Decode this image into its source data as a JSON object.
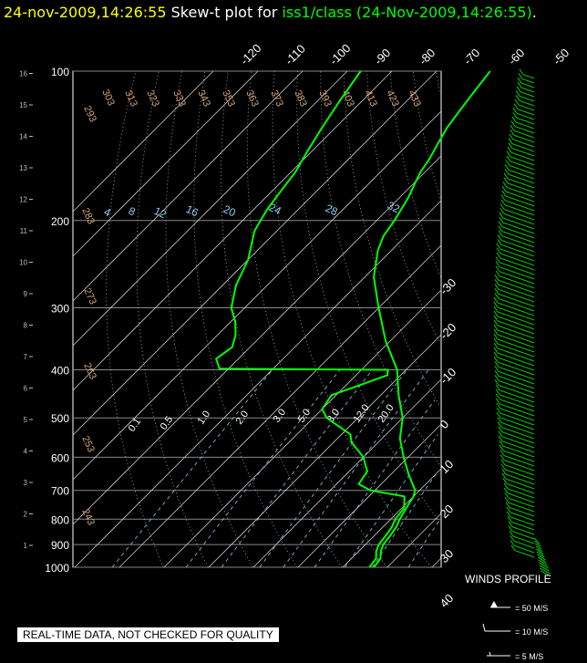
{
  "title": {
    "date_time": "24-nov-2009,14:26:55",
    "label": "Skew-t plot for",
    "source": "iss1/class (24-Nov-2009,14:26:55)",
    "end": "."
  },
  "quality_banner": "REAL-TIME DATA, NOT CHECKED FOR QUALITY",
  "wind_profile": {
    "title": "WINDS PROFILE",
    "legend": [
      "= 50 M/S",
      "= 10 M/S",
      "= 5 M/S"
    ]
  },
  "colors": {
    "background": "#000000",
    "profile": "#00ff00",
    "grid": "#ffffff",
    "isotherm_labels": "#ffffff",
    "dry_adiabat_labels": "#d2a679",
    "mixing_ratio_labels": "#87ceeb",
    "moist_adiabat_labels": "#ffffff"
  },
  "chart_data": {
    "type": "line",
    "pressure_levels": [
      100,
      200,
      300,
      400,
      500,
      600,
      700,
      800,
      900,
      1000
    ],
    "height_km_ticks": [
      1,
      2,
      3,
      4,
      5,
      6,
      7,
      8,
      9,
      10,
      11,
      12,
      13,
      14,
      15,
      16
    ],
    "isotherms_top": [
      "-120",
      "-110",
      "-100",
      "-90",
      "-80",
      "-70",
      "-60",
      "-50",
      "-40"
    ],
    "isotherms_right": [
      "-30",
      "-20",
      "-10",
      "0",
      "10",
      "20",
      "30",
      "40"
    ],
    "dry_adiabats": [
      "293",
      "303",
      "313",
      "323",
      "333",
      "343",
      "353",
      "363",
      "373",
      "383",
      "393",
      "403",
      "413",
      "423",
      "433",
      "283",
      "273",
      "263",
      "253",
      "243"
    ],
    "mixing_ratio_top": [
      "4",
      "8",
      "12",
      "16",
      "20",
      "24",
      "28",
      "32"
    ],
    "mixing_ratio_mid": [
      "0.1",
      "0.5",
      "1.0",
      "2.0",
      "3.0",
      "5.0",
      "8.0",
      "12.0",
      "20.0"
    ],
    "series": [
      {
        "key": "temperature",
        "points": [
          {
            "p": 1000,
            "t": 17.0
          },
          {
            "p": 960,
            "t": 16.5
          },
          {
            "p": 930,
            "t": 15.0
          },
          {
            "p": 900,
            "t": 14.0
          },
          {
            "p": 860,
            "t": 13.5
          },
          {
            "p": 830,
            "t": 13.0
          },
          {
            "p": 800,
            "t": 12.0
          },
          {
            "p": 760,
            "t": 11.0
          },
          {
            "p": 720,
            "t": 10.0
          },
          {
            "p": 700,
            "t": 9.0
          },
          {
            "p": 650,
            "t": 4.0
          },
          {
            "p": 600,
            "t": -1.0
          },
          {
            "p": 550,
            "t": -6.0
          },
          {
            "p": 500,
            "t": -10.0
          },
          {
            "p": 450,
            "t": -16.0
          },
          {
            "p": 400,
            "t": -22.0
          },
          {
            "p": 350,
            "t": -31.0
          },
          {
            "p": 300,
            "t": -40.0
          },
          {
            "p": 260,
            "t": -48.0
          },
          {
            "p": 230,
            "t": -53.0
          },
          {
            "p": 215,
            "t": -55.0
          },
          {
            "p": 200,
            "t": -56.0
          },
          {
            "p": 190,
            "t": -57.0
          },
          {
            "p": 180,
            "t": -58.0
          },
          {
            "p": 170,
            "t": -59.5
          },
          {
            "p": 160,
            "t": -61.0
          },
          {
            "p": 150,
            "t": -62.0
          },
          {
            "p": 140,
            "t": -63.5
          },
          {
            "p": 130,
            "t": -65.0
          },
          {
            "p": 120,
            "t": -66.0
          },
          {
            "p": 110,
            "t": -67.0
          },
          {
            "p": 100,
            "t": -68.0
          }
        ]
      },
      {
        "key": "dewpoint",
        "points": [
          {
            "p": 1000,
            "t": 16.0
          },
          {
            "p": 960,
            "t": 15.5
          },
          {
            "p": 930,
            "t": 14.0
          },
          {
            "p": 900,
            "t": 13.0
          },
          {
            "p": 860,
            "t": 12.5
          },
          {
            "p": 830,
            "t": 12.0
          },
          {
            "p": 800,
            "t": 11.0
          },
          {
            "p": 760,
            "t": 10.5
          },
          {
            "p": 720,
            "t": 8.0
          },
          {
            "p": 700,
            "t": -1.0
          },
          {
            "p": 680,
            "t": -5.0
          },
          {
            "p": 640,
            "t": -6.0
          },
          {
            "p": 620,
            "t": -8.0
          },
          {
            "p": 600,
            "t": -10.0
          },
          {
            "p": 560,
            "t": -16.0
          },
          {
            "p": 540,
            "t": -18.0
          },
          {
            "p": 500,
            "t": -27.0
          },
          {
            "p": 480,
            "t": -30.0
          },
          {
            "p": 450,
            "t": -31.0
          },
          {
            "p": 430,
            "t": -27.0
          },
          {
            "p": 410,
            "t": -23.0
          },
          {
            "p": 400,
            "t": -24.0
          },
          {
            "p": 398,
            "t": -62.0
          },
          {
            "p": 380,
            "t": -65.0
          },
          {
            "p": 360,
            "t": -64.0
          },
          {
            "p": 340,
            "t": -66.0
          },
          {
            "p": 320,
            "t": -69.0
          },
          {
            "p": 300,
            "t": -73.0
          },
          {
            "p": 270,
            "t": -77.0
          },
          {
            "p": 240,
            "t": -80.0
          },
          {
            "p": 210,
            "t": -85.0
          },
          {
            "p": 200,
            "t": -86.0
          },
          {
            "p": 190,
            "t": -87.0
          },
          {
            "p": 175,
            "t": -88.0
          },
          {
            "p": 160,
            "t": -89.0
          },
          {
            "p": 145,
            "t": -91.0
          },
          {
            "p": 130,
            "t": -93.0
          },
          {
            "p": 115,
            "t": -95.0
          },
          {
            "p": 100,
            "t": -97.0
          }
        ]
      }
    ],
    "ylim": [
      1000,
      100
    ],
    "y_scale": "log-pressure",
    "skew": "45 degrees",
    "grid": true
  }
}
